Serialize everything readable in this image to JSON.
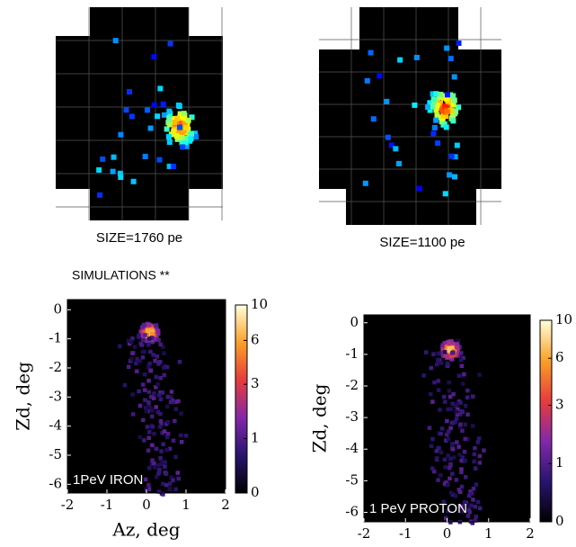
{
  "cameras": [
    {
      "label": "SIZE=1760 pe"
    },
    {
      "label": "SIZE=1100 pe"
    }
  ],
  "simulations_title": "SIMULATIONS **",
  "chart_data": [
    {
      "type": "heatmap",
      "annotation": "1PeV IRON",
      "xlabel": "Az, deg",
      "ylabel": "Zd, deg",
      "xlim": [
        -2,
        2
      ],
      "ylim": [
        -6.3,
        0.35
      ],
      "xticks": [
        -2,
        -1,
        0,
        1,
        2
      ],
      "yticks": [
        0,
        -1,
        -2,
        -3,
        -4,
        -5,
        -6
      ],
      "colorbar": {
        "lim": [
          0,
          10
        ],
        "ticks": [
          0,
          1,
          3,
          6,
          10
        ],
        "scale": "log1p"
      }
    },
    {
      "type": "heatmap",
      "annotation": "1 PeV PROTON",
      "ylabel": "Zd, deg",
      "xlim": [
        -2,
        2
      ],
      "ylim": [
        -6.3,
        0.25
      ],
      "xticks": [
        -2,
        -1,
        0,
        1,
        2
      ],
      "yticks": [
        0,
        -1,
        -2,
        -3,
        -4,
        -5,
        -6
      ],
      "colorbar": {
        "lim": [
          0,
          10
        ],
        "ticks": [
          0,
          1,
          3,
          6,
          10
        ],
        "scale": "log1p"
      }
    }
  ]
}
